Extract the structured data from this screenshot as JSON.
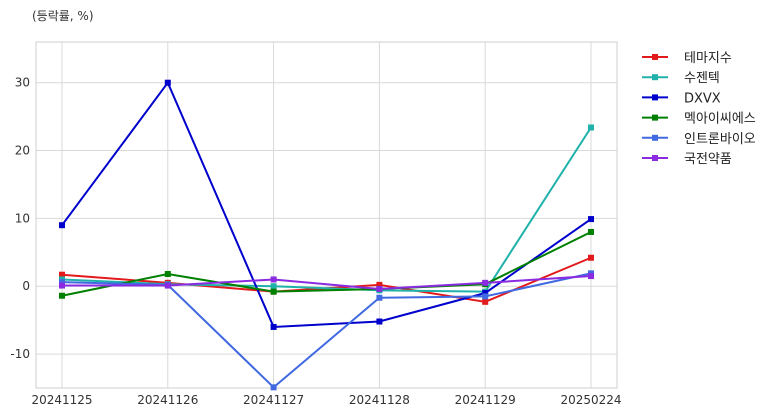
{
  "chart_data": {
    "type": "line",
    "unit_label": "(등락률, %)",
    "title": "",
    "xlabel": "",
    "ylabel": "",
    "categories": [
      "20241125",
      "20241126",
      "20241127",
      "20241128",
      "20241129",
      "20250224"
    ],
    "yticks": [
      -10,
      0,
      10,
      20,
      30
    ],
    "ylim": [
      -15,
      36
    ],
    "grid": true,
    "legend_position": "right-top",
    "series": [
      {
        "name": "테마지수",
        "color": "#e31a1c",
        "values": [
          1.7,
          0.5,
          -0.8,
          0.2,
          -2.3,
          4.2
        ]
      },
      {
        "name": "수젠텍",
        "color": "#20b2aa",
        "values": [
          1.0,
          0.3,
          0.0,
          -0.6,
          -0.8,
          23.4
        ]
      },
      {
        "name": "DXVX",
        "color": "#0000cd",
        "values": [
          9.0,
          30.0,
          -6.0,
          -5.2,
          -1.0,
          9.9
        ]
      },
      {
        "name": "멕아이씨에스",
        "color": "#008000",
        "values": [
          -1.4,
          1.8,
          -0.8,
          -0.4,
          0.3,
          8.0
        ]
      },
      {
        "name": "인트론바이오",
        "color": "#4169e1",
        "values": [
          0.6,
          0.2,
          -14.9,
          -1.7,
          -1.5,
          1.9
        ]
      },
      {
        "name": "국전약품",
        "color": "#8a2be2",
        "values": [
          0.1,
          0.1,
          1.0,
          -0.4,
          0.5,
          1.5
        ]
      }
    ]
  }
}
